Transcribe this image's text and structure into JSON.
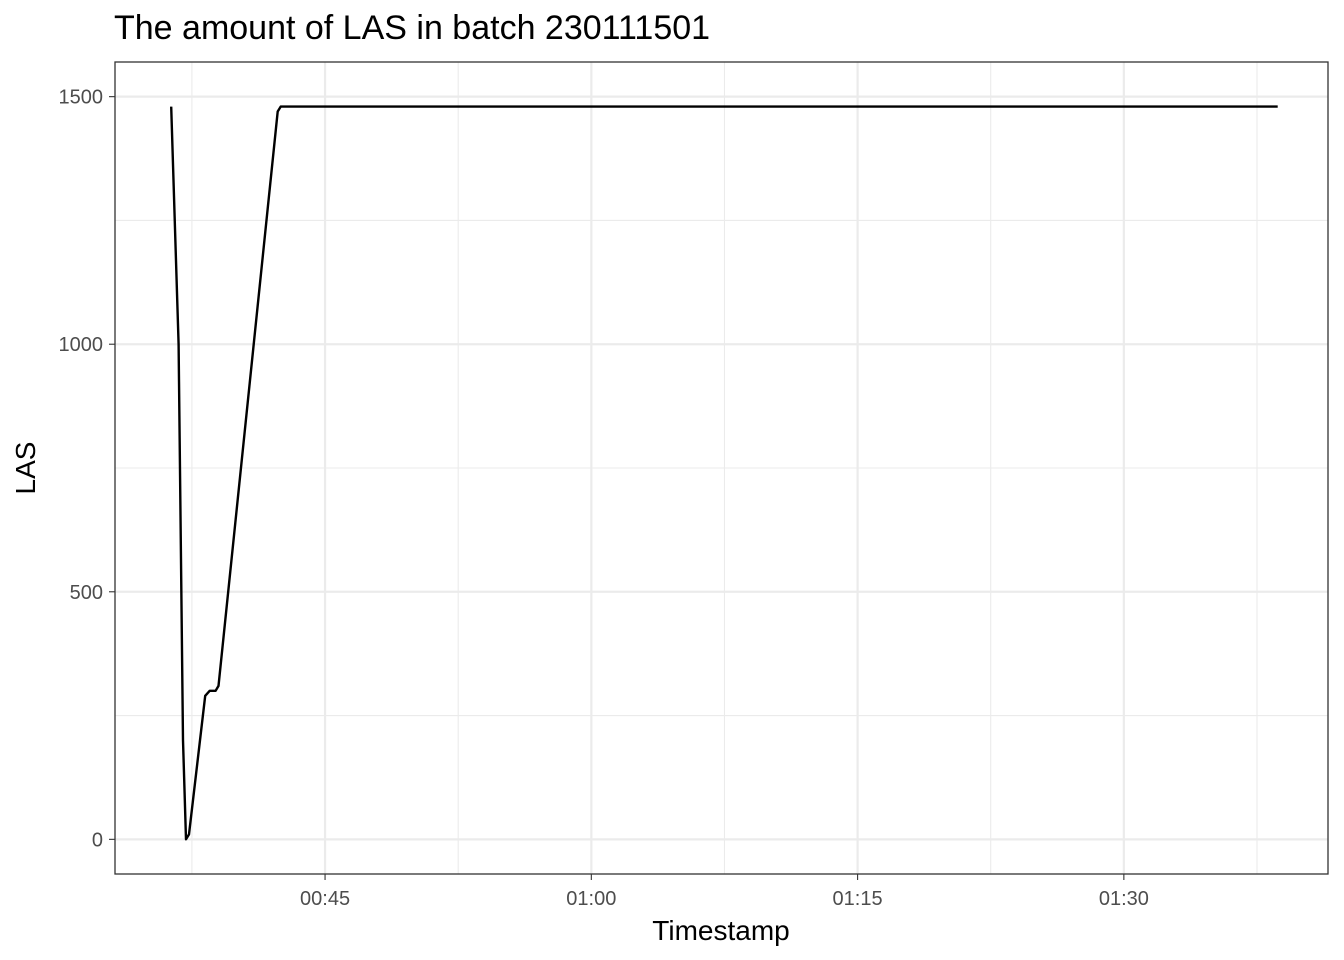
{
  "chart_data": {
    "type": "line",
    "title": "The amount of LAS in batch 230111501",
    "xlabel": "Timestamp",
    "ylabel": "LAS",
    "x_unit": "minutes (hh:mm)",
    "xlim": [
      "00:33:10",
      "01:41:30"
    ],
    "ylim": [
      -70,
      1570
    ],
    "x_ticks": [
      "00:45",
      "01:00",
      "01:15",
      "01:30"
    ],
    "y_ticks": [
      0,
      500,
      1000,
      1500
    ],
    "grid": true,
    "legend": "none",
    "series": [
      {
        "color": "#000000",
        "x": [
          "00:36:20",
          "00:36:45",
          "00:37:00",
          "00:37:10",
          "00:37:20",
          "00:38:15",
          "00:38:30",
          "00:38:50",
          "00:39:00",
          "00:42:20",
          "00:42:30",
          "00:42:45",
          "01:38:40"
        ],
        "y": [
          1480,
          1000,
          200,
          0,
          10,
          290,
          300,
          300,
          310,
          1470,
          1480,
          1480,
          1480
        ]
      }
    ]
  }
}
